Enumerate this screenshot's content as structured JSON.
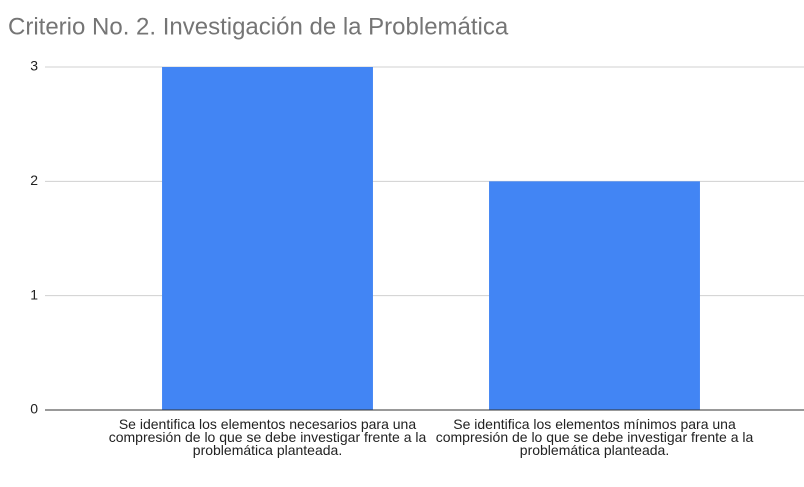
{
  "chart_data": {
    "type": "bar",
    "title": "Criterio No. 2. Investigación de la Problemática",
    "categories": [
      "Se identifica los elementos necesarios para una compresión de lo que se debe investigar frente a la problemática planteada.",
      "Se identifica los elementos mínimos para una compresión de lo que se debe investigar frente a la problemática planteada."
    ],
    "values": [
      3,
      2
    ],
    "color": "#4285f4",
    "ylim": [
      0,
      3
    ],
    "yticks": [
      0,
      1,
      2,
      3
    ],
    "grid": true
  }
}
